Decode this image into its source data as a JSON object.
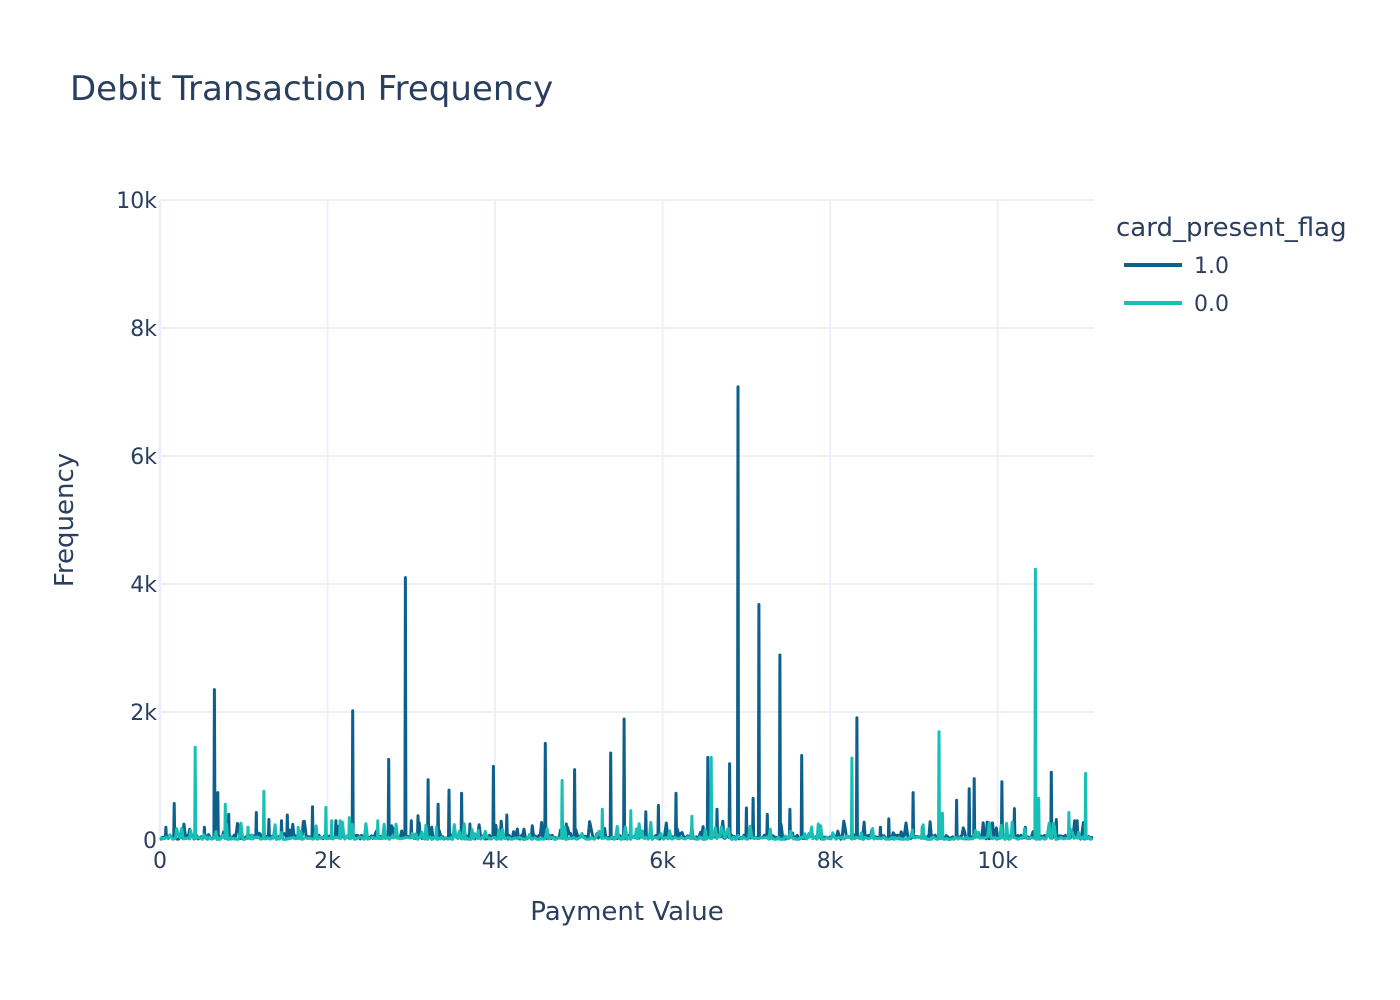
{
  "chart_data": {
    "type": "line",
    "title": "Debit Transaction Frequency",
    "xlabel": "Payment Value",
    "ylabel": "Frequency",
    "xlim": [
      0,
      11150
    ],
    "ylim": [
      0,
      10000
    ],
    "x_ticks": [
      0,
      2000,
      4000,
      6000,
      8000,
      10000
    ],
    "x_tick_labels": [
      "0",
      "2k",
      "4k",
      "6k",
      "8k",
      "10k"
    ],
    "y_ticks": [
      0,
      2000,
      4000,
      6000,
      8000,
      10000
    ],
    "y_tick_labels": [
      "0",
      "2k",
      "4k",
      "6k",
      "8k",
      "10k"
    ],
    "grid": true,
    "legend": {
      "title": "card_present_flag",
      "placement": "top-right, outside plot"
    },
    "series": [
      {
        "name": "1.0",
        "color": "#0d5f8c",
        "baseline": 40,
        "peaks": [
          [
            70,
            200
          ],
          [
            170,
            570
          ],
          [
            530,
            200
          ],
          [
            650,
            2350
          ],
          [
            690,
            740
          ],
          [
            820,
            400
          ],
          [
            1150,
            430
          ],
          [
            1300,
            320
          ],
          [
            1450,
            300
          ],
          [
            1520,
            390
          ],
          [
            1820,
            520
          ],
          [
            2100,
            300
          ],
          [
            2300,
            2020
          ],
          [
            2730,
            1260
          ],
          [
            2930,
            4100
          ],
          [
            3000,
            300
          ],
          [
            3080,
            380
          ],
          [
            3200,
            940
          ],
          [
            3320,
            560
          ],
          [
            3450,
            780
          ],
          [
            3600,
            730
          ],
          [
            3700,
            250
          ],
          [
            3980,
            1150
          ],
          [
            4140,
            390
          ],
          [
            4600,
            1510
          ],
          [
            4850,
            250
          ],
          [
            4950,
            1100
          ],
          [
            5380,
            1360
          ],
          [
            5540,
            1890
          ],
          [
            5800,
            440
          ],
          [
            5950,
            540
          ],
          [
            6160,
            730
          ],
          [
            6540,
            1290
          ],
          [
            6650,
            480
          ],
          [
            6800,
            1190
          ],
          [
            6900,
            7080
          ],
          [
            7000,
            500
          ],
          [
            7080,
            650
          ],
          [
            7150,
            3680
          ],
          [
            7250,
            400
          ],
          [
            7400,
            2890
          ],
          [
            7520,
            480
          ],
          [
            7660,
            1320
          ],
          [
            7880,
            200
          ],
          [
            8320,
            1910
          ],
          [
            8600,
            200
          ],
          [
            8700,
            330
          ],
          [
            8990,
            740
          ],
          [
            9100,
            200
          ],
          [
            9510,
            620
          ],
          [
            9660,
            800
          ],
          [
            9720,
            960
          ],
          [
            10050,
            910
          ],
          [
            10200,
            490
          ],
          [
            10330,
            200
          ],
          [
            10640,
            1060
          ],
          [
            10700,
            320
          ],
          [
            10950,
            300
          ]
        ]
      },
      {
        "name": "0.0",
        "color": "#17bfb4",
        "baseline": 25,
        "peaks": [
          [
            420,
            1450
          ],
          [
            780,
            560
          ],
          [
            1050,
            200
          ],
          [
            1240,
            760
          ],
          [
            1650,
            200
          ],
          [
            1980,
            510
          ],
          [
            2050,
            300
          ],
          [
            2150,
            300
          ],
          [
            2260,
            350
          ],
          [
            2600,
            300
          ],
          [
            3300,
            200
          ],
          [
            3800,
            150
          ],
          [
            4800,
            930
          ],
          [
            5280,
            480
          ],
          [
            5620,
            460
          ],
          [
            6350,
            370
          ],
          [
            6580,
            1290
          ],
          [
            8260,
            1280
          ],
          [
            9300,
            1690
          ],
          [
            9340,
            420
          ],
          [
            10450,
            4230
          ],
          [
            10490,
            650
          ],
          [
            10850,
            430
          ],
          [
            11050,
            1040
          ]
        ]
      }
    ]
  }
}
